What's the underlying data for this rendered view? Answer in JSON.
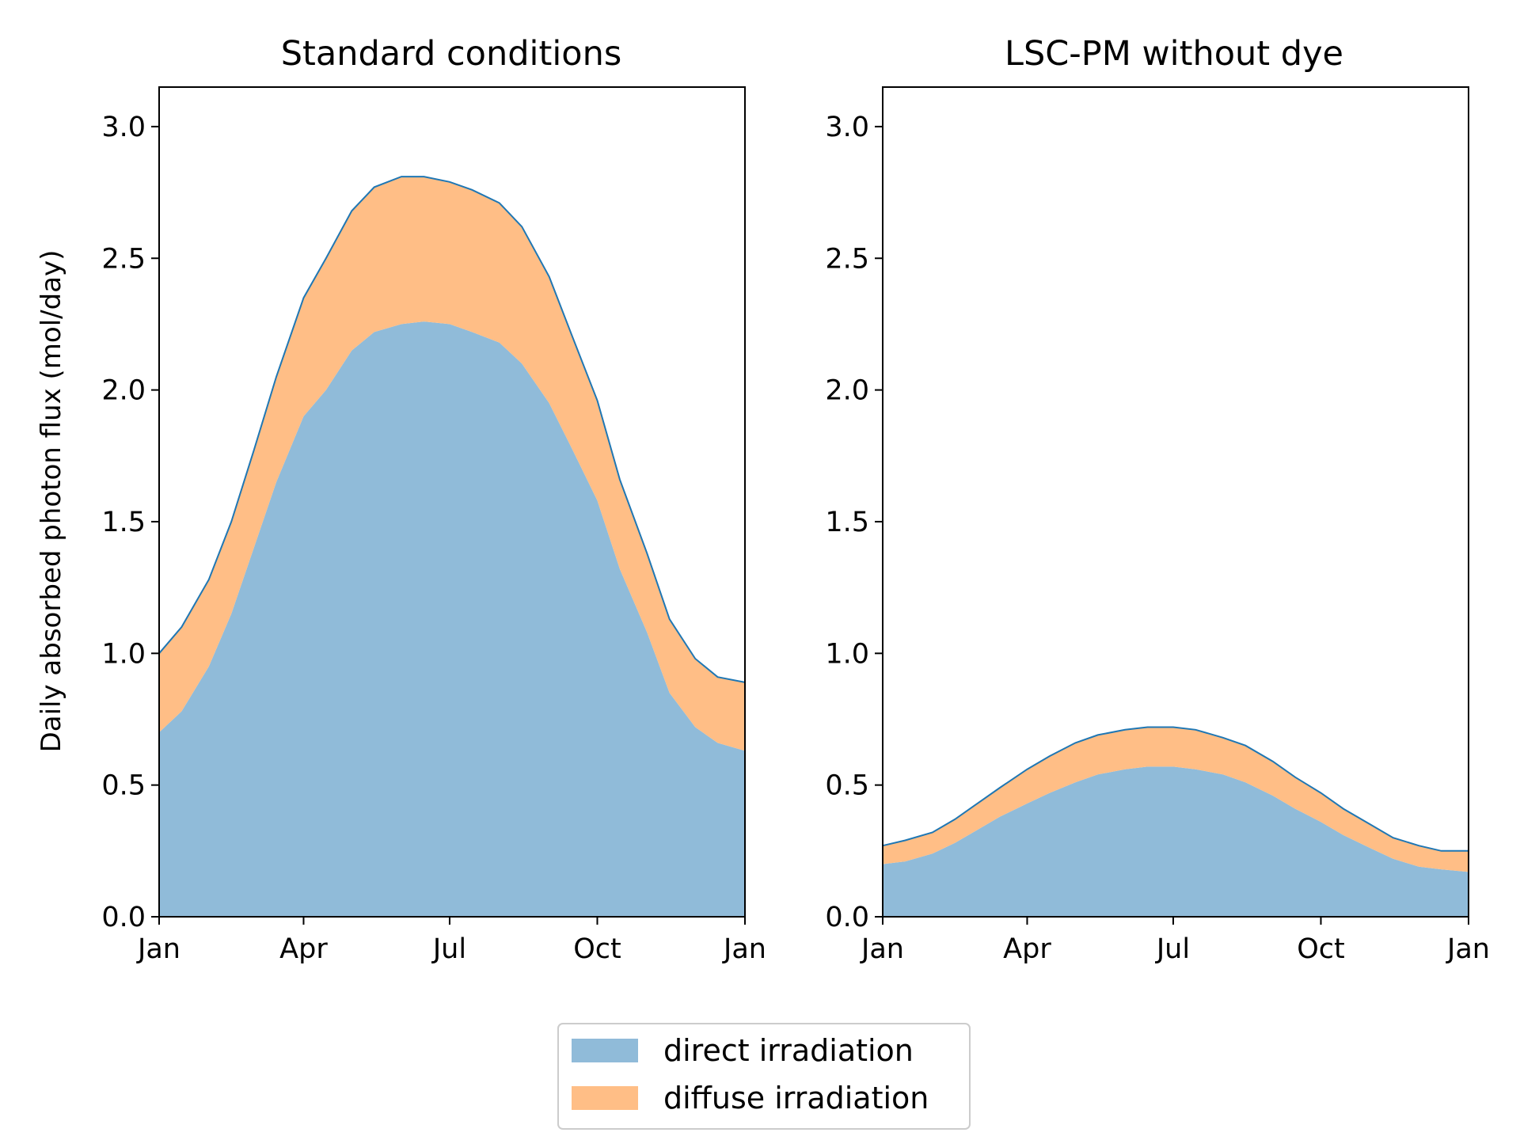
{
  "chart_data": [
    {
      "type": "area",
      "stacked": true,
      "title": "Standard conditions",
      "ylabel": "Daily absorbed photon flux (mol/day)",
      "xlabel": "",
      "x_range": [
        "2019-01-01",
        "2020-01-01"
      ],
      "xticks": [
        "Jan",
        "Apr",
        "Jul",
        "Oct",
        "Jan"
      ],
      "ylim": [
        0,
        3.15
      ],
      "yticks": [
        "0.0",
        "0.5",
        "1.0",
        "1.5",
        "2.0",
        "2.5",
        "3.0"
      ],
      "grid": false,
      "series": [
        {
          "name": "direct irradiation",
          "color": "#90bbd9",
          "x": [
            "2019-01-01",
            "2019-01-15",
            "2019-02-01",
            "2019-02-15",
            "2019-03-01",
            "2019-03-15",
            "2019-04-01",
            "2019-04-15",
            "2019-05-01",
            "2019-05-15",
            "2019-06-01",
            "2019-06-15",
            "2019-07-01",
            "2019-07-15",
            "2019-08-01",
            "2019-08-15",
            "2019-09-01",
            "2019-09-15",
            "2019-10-01",
            "2019-10-15",
            "2019-11-01",
            "2019-11-15",
            "2019-12-01",
            "2019-12-15",
            "2020-01-01"
          ],
          "values": [
            0.7,
            0.78,
            0.95,
            1.15,
            1.4,
            1.65,
            1.9,
            2.0,
            2.15,
            2.22,
            2.25,
            2.26,
            2.25,
            2.22,
            2.18,
            2.1,
            1.95,
            1.78,
            1.58,
            1.32,
            1.08,
            0.85,
            0.72,
            0.66,
            0.63
          ]
        },
        {
          "name": "diffuse irradiation",
          "color": "#ffbe86",
          "x": [
            "2019-01-01",
            "2019-01-15",
            "2019-02-01",
            "2019-02-15",
            "2019-03-01",
            "2019-03-15",
            "2019-04-01",
            "2019-04-15",
            "2019-05-01",
            "2019-05-15",
            "2019-06-01",
            "2019-06-15",
            "2019-07-01",
            "2019-07-15",
            "2019-08-01",
            "2019-08-15",
            "2019-09-01",
            "2019-09-15",
            "2019-10-01",
            "2019-10-15",
            "2019-11-01",
            "2019-11-15",
            "2019-12-01",
            "2019-12-15",
            "2020-01-01"
          ],
          "values": [
            0.3,
            0.32,
            0.33,
            0.35,
            0.37,
            0.4,
            0.45,
            0.5,
            0.53,
            0.55,
            0.56,
            0.55,
            0.54,
            0.54,
            0.53,
            0.52,
            0.48,
            0.43,
            0.38,
            0.34,
            0.3,
            0.28,
            0.26,
            0.25,
            0.26
          ]
        }
      ],
      "total_line_color": "#1f77b4"
    },
    {
      "type": "area",
      "stacked": true,
      "title": "LSC-PM without dye",
      "ylabel": "",
      "xlabel": "",
      "x_range": [
        "2019-01-01",
        "2020-01-01"
      ],
      "xticks": [
        "Jan",
        "Apr",
        "Jul",
        "Oct",
        "Jan"
      ],
      "ylim": [
        0,
        3.15
      ],
      "yticks": [
        "0.0",
        "0.5",
        "1.0",
        "1.5",
        "2.0",
        "2.5",
        "3.0"
      ],
      "grid": false,
      "series": [
        {
          "name": "direct irradiation",
          "color": "#90bbd9",
          "x": [
            "2019-01-01",
            "2019-01-15",
            "2019-02-01",
            "2019-02-15",
            "2019-03-01",
            "2019-03-15",
            "2019-04-01",
            "2019-04-15",
            "2019-05-01",
            "2019-05-15",
            "2019-06-01",
            "2019-06-15",
            "2019-07-01",
            "2019-07-15",
            "2019-08-01",
            "2019-08-15",
            "2019-09-01",
            "2019-09-15",
            "2019-10-01",
            "2019-10-15",
            "2019-11-01",
            "2019-11-15",
            "2019-12-01",
            "2019-12-15",
            "2020-01-01"
          ],
          "values": [
            0.2,
            0.21,
            0.24,
            0.28,
            0.33,
            0.38,
            0.43,
            0.47,
            0.51,
            0.54,
            0.56,
            0.57,
            0.57,
            0.56,
            0.54,
            0.51,
            0.46,
            0.41,
            0.36,
            0.31,
            0.26,
            0.22,
            0.19,
            0.18,
            0.17
          ]
        },
        {
          "name": "diffuse irradiation",
          "color": "#ffbe86",
          "x": [
            "2019-01-01",
            "2019-01-15",
            "2019-02-01",
            "2019-02-15",
            "2019-03-01",
            "2019-03-15",
            "2019-04-01",
            "2019-04-15",
            "2019-05-01",
            "2019-05-15",
            "2019-06-01",
            "2019-06-15",
            "2019-07-01",
            "2019-07-15",
            "2019-08-01",
            "2019-08-15",
            "2019-09-01",
            "2019-09-15",
            "2019-10-01",
            "2019-10-15",
            "2019-11-01",
            "2019-11-15",
            "2019-12-01",
            "2019-12-15",
            "2020-01-01"
          ],
          "values": [
            0.07,
            0.08,
            0.08,
            0.09,
            0.1,
            0.11,
            0.13,
            0.14,
            0.15,
            0.15,
            0.15,
            0.15,
            0.15,
            0.15,
            0.14,
            0.14,
            0.13,
            0.12,
            0.11,
            0.1,
            0.09,
            0.08,
            0.08,
            0.07,
            0.08
          ]
        }
      ],
      "total_line_color": "#1f77b4"
    }
  ],
  "legend": {
    "placement": "bottom-center",
    "items": [
      {
        "label": "direct irradiation",
        "color": "#90bbd9"
      },
      {
        "label": "diffuse irradiation",
        "color": "#ffbe86"
      }
    ]
  }
}
